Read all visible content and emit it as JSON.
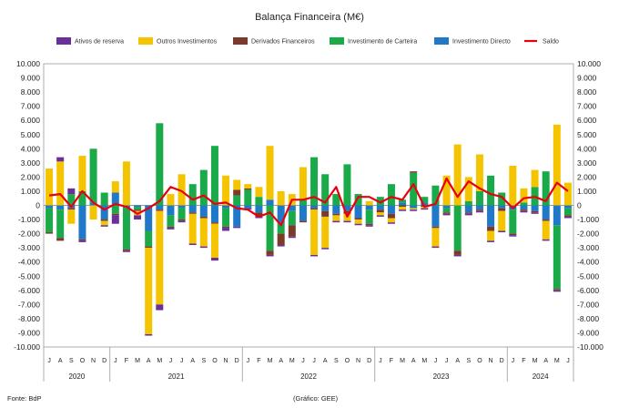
{
  "chart_data": {
    "type": "bar",
    "stacked": true,
    "title": "Balança Financeira (M€)",
    "source": "Fonte: BdP",
    "credit": "(Gráfico: GEE)",
    "ylim": [
      -10000,
      10000
    ],
    "yticks": [
      -10000,
      -9000,
      -8000,
      -7000,
      -6000,
      -5000,
      -4000,
      -3000,
      -2000,
      -1000,
      0,
      1000,
      2000,
      3000,
      4000,
      5000,
      6000,
      7000,
      8000,
      9000,
      10000
    ],
    "ytick_labels": [
      "-10.000",
      "-9.000",
      "-8.000",
      "-7.000",
      "-6.000",
      "-5.000",
      "-4.000",
      "-3.000",
      "-2.000",
      "-1.000",
      "0",
      "1.000",
      "2.000",
      "3.000",
      "4.000",
      "5.000",
      "6.000",
      "7.000",
      "8.000",
      "9.000",
      "10.000"
    ],
    "categories": [
      "J",
      "A",
      "S",
      "O",
      "N",
      "D",
      "J",
      "F",
      "M",
      "A",
      "M",
      "J",
      "J",
      "A",
      "S",
      "O",
      "N",
      "D",
      "J",
      "F",
      "M",
      "A",
      "M",
      "J",
      "J",
      "A",
      "S",
      "O",
      "N",
      "D",
      "J",
      "F",
      "M",
      "A",
      "M",
      "J",
      "J",
      "A",
      "S",
      "O",
      "N",
      "D",
      "J",
      "F",
      "M",
      "A",
      "M",
      "J"
    ],
    "years": [
      {
        "label": "2020",
        "start": 0,
        "end": 5
      },
      {
        "label": "2021",
        "start": 6,
        "end": 17
      },
      {
        "label": "2022",
        "start": 18,
        "end": 29
      },
      {
        "label": "2023",
        "start": 30,
        "end": 41
      },
      {
        "label": "2024",
        "start": 42,
        "end": 47
      }
    ],
    "series": [
      {
        "name": "Investimento Directo",
        "color": "#1f78c8",
        "values": [
          -200,
          -300,
          -200,
          -2400,
          200,
          -1000,
          900,
          -200,
          -100,
          -1800,
          -300,
          -700,
          -200,
          -500,
          -800,
          -1200,
          -200,
          -1500,
          -200,
          -500,
          400,
          -1300,
          -400,
          -1100,
          -200,
          -400,
          -600,
          -400,
          -900,
          -300,
          -300,
          -600,
          200,
          -200,
          200,
          -1500,
          -200,
          0,
          -500,
          -300,
          -1500,
          -200,
          -300,
          -300,
          -400,
          -1000,
          -1400,
          -200
        ]
      },
      {
        "name": "Investimento de Carteira",
        "color": "#1aaa4a",
        "values": [
          -1700,
          -2000,
          800,
          1000,
          3800,
          900,
          -600,
          -2900,
          -200,
          -1100,
          5800,
          -800,
          -800,
          1500,
          2500,
          4200,
          -1300,
          700,
          1100,
          600,
          -3200,
          -700,
          -1000,
          400,
          3400,
          2200,
          800,
          2900,
          800,
          -1000,
          600,
          1500,
          200,
          2300,
          400,
          1400,
          -300,
          -3200,
          300,
          1000,
          2100,
          900,
          -1700,
          200,
          1300,
          2400,
          -4500,
          -500
        ]
      },
      {
        "name": "Derivados Financeiros",
        "color": "#7b3a2a",
        "values": [
          -100,
          -200,
          -100,
          -100,
          0,
          -100,
          -100,
          -100,
          -100,
          -100,
          -100,
          -100,
          -100,
          -100,
          -100,
          -100,
          -100,
          400,
          100,
          -300,
          -300,
          -800,
          -800,
          -100,
          -100,
          -400,
          -100,
          -200,
          -100,
          -100,
          -200,
          -300,
          -100,
          100,
          -100,
          -100,
          -100,
          -300,
          -100,
          -100,
          -300,
          -200,
          -100,
          -100,
          -100,
          -100,
          -100,
          -100
        ]
      },
      {
        "name": "Outros Investimentos",
        "color": "#f5c400",
        "values": [
          2600,
          3100,
          -1000,
          2500,
          -1000,
          -300,
          800,
          3100,
          -300,
          -6100,
          -6600,
          800,
          2200,
          -2100,
          -2000,
          -2400,
          2100,
          700,
          300,
          700,
          3800,
          1000,
          800,
          2300,
          -3200,
          -2200,
          -400,
          -500,
          -300,
          300,
          -200,
          -300,
          -200,
          -100,
          -100,
          -1300,
          2100,
          4300,
          1700,
          2600,
          -700,
          -1400,
          2800,
          1000,
          1200,
          -1300,
          5700,
          1600
        ]
      },
      {
        "name": "Ativos de reserva",
        "color": "#6a2f9a",
        "values": [
          0,
          300,
          400,
          -100,
          0,
          -100,
          -600,
          -100,
          -300,
          -100,
          -400,
          -100,
          -100,
          -100,
          -100,
          -200,
          -200,
          -100,
          -100,
          -100,
          -100,
          -100,
          -100,
          0,
          -100,
          -100,
          -100,
          -100,
          -100,
          -100,
          -100,
          -100,
          -100,
          -100,
          -100,
          -100,
          -100,
          -100,
          -100,
          -100,
          -100,
          -100,
          -100,
          -100,
          -100,
          -100,
          -100,
          -100
        ]
      }
    ],
    "saldo": {
      "name": "Saldo",
      "color": "#e8000d",
      "values": [
        700,
        800,
        -100,
        1000,
        200,
        -300,
        100,
        -100,
        -600,
        -200,
        300,
        1300,
        1000,
        400,
        700,
        100,
        200,
        -200,
        -300,
        -800,
        -500,
        -1400,
        400,
        400,
        600,
        200,
        1300,
        -800,
        600,
        600,
        200,
        600,
        400,
        1500,
        -100,
        100,
        1900,
        600,
        1700,
        1200,
        800,
        600,
        -200,
        500,
        600,
        300,
        1600,
        1000
      ]
    }
  }
}
